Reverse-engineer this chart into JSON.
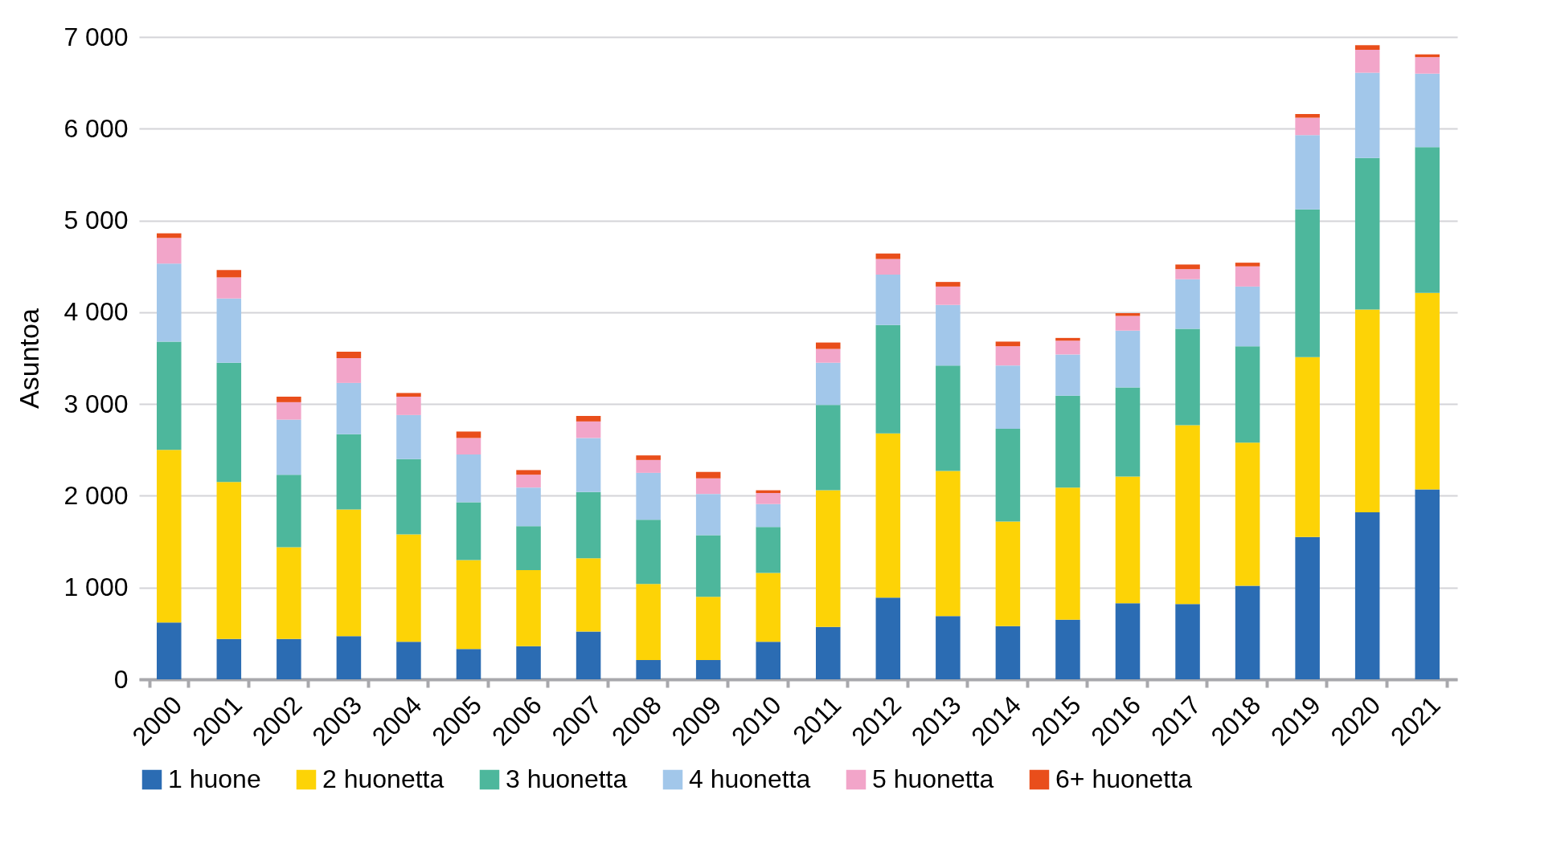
{
  "chart_data": {
    "type": "bar",
    "stacked": true,
    "ylabel": "Asuntoa",
    "categories": [
      "2000",
      "2001",
      "2002",
      "2003",
      "2004",
      "2005",
      "2006",
      "2007",
      "2008",
      "2009",
      "2010",
      "2011",
      "2012",
      "2013",
      "2014",
      "2015",
      "2016",
      "2017",
      "2018",
      "2019",
      "2020",
      "2021"
    ],
    "series": [
      {
        "name": "1 huone",
        "color": "#2b6cb3",
        "values": [
          620,
          440,
          440,
          470,
          410,
          330,
          360,
          520,
          210,
          210,
          410,
          570,
          890,
          690,
          580,
          650,
          830,
          820,
          1020,
          1550,
          1820,
          2070
        ]
      },
      {
        "name": "2 huonetta",
        "color": "#fdd306",
        "values": [
          1880,
          1710,
          1000,
          1380,
          1170,
          970,
          830,
          800,
          830,
          690,
          750,
          1490,
          1790,
          1580,
          1140,
          1440,
          1380,
          1950,
          1560,
          1960,
          2210,
          2140
        ]
      },
      {
        "name": "3 huonetta",
        "color": "#4db79c",
        "values": [
          1180,
          1300,
          790,
          820,
          820,
          630,
          480,
          720,
          700,
          670,
          500,
          930,
          1180,
          1150,
          1010,
          1000,
          970,
          1050,
          1050,
          1610,
          1650,
          1590
        ]
      },
      {
        "name": "4 huonetta",
        "color": "#a2c7ea",
        "values": [
          850,
          700,
          600,
          560,
          480,
          520,
          420,
          590,
          510,
          450,
          250,
          460,
          550,
          660,
          690,
          450,
          620,
          540,
          650,
          810,
          930,
          800
        ]
      },
      {
        "name": "5 huonetta",
        "color": "#f2a5c9",
        "values": [
          280,
          230,
          190,
          270,
          200,
          180,
          140,
          180,
          140,
          170,
          120,
          150,
          170,
          200,
          210,
          150,
          160,
          110,
          220,
          190,
          250,
          180
        ]
      },
      {
        "name": "6+ huonetta",
        "color": "#e94e1b",
        "values": [
          50,
          80,
          60,
          70,
          40,
          70,
          50,
          60,
          50,
          70,
          30,
          70,
          60,
          50,
          50,
          30,
          30,
          50,
          40,
          40,
          50,
          30
        ]
      }
    ],
    "ylim": [
      0,
      7000
    ],
    "yticks": [
      0,
      {
        "value": 1000,
        "label": "1 000"
      },
      {
        "value": 2000,
        "label": "2 000"
      },
      {
        "value": 3000,
        "label": "3 000"
      },
      {
        "value": 4000,
        "label": "4 000"
      },
      {
        "value": 5000,
        "label": "5 000"
      },
      {
        "value": 6000,
        "label": "6 000"
      },
      {
        "value": 7000,
        "label": "7 000"
      }
    ],
    "grid": "y",
    "legend": "bottom"
  }
}
